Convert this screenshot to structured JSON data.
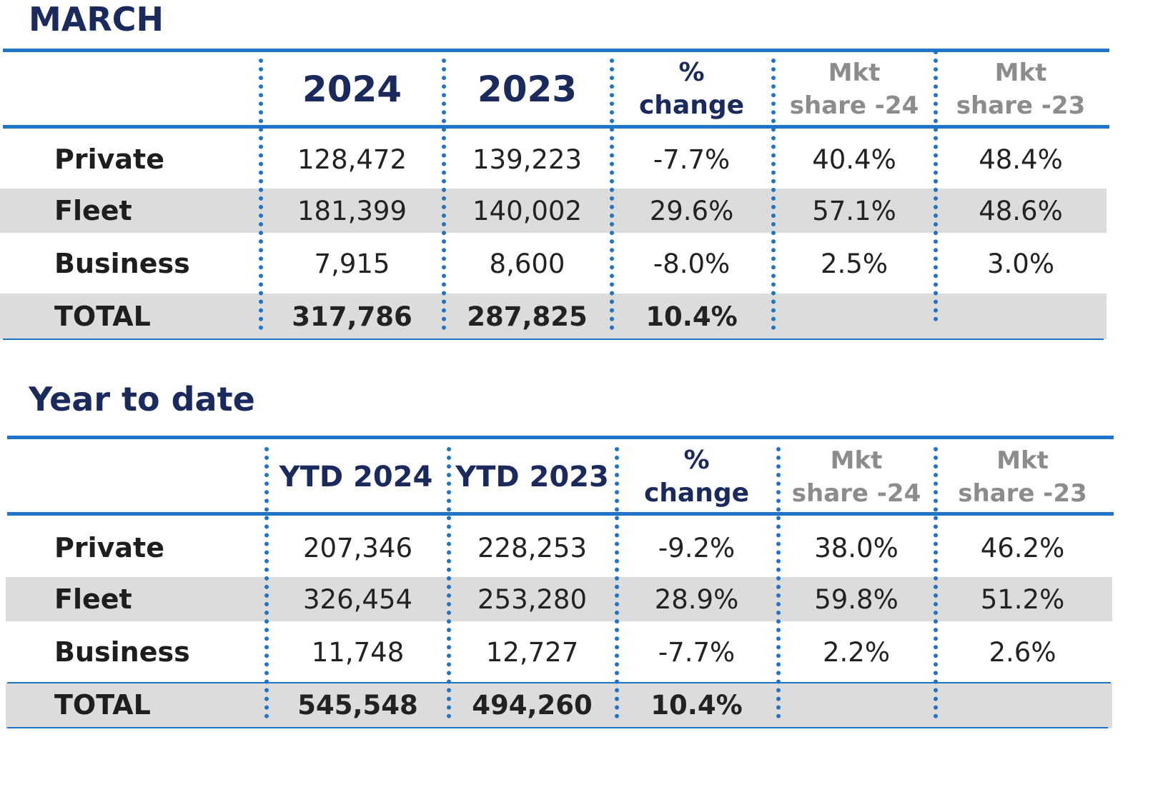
{
  "march": {
    "title": "MARCH",
    "columns": {
      "y1": "2024",
      "y2": "2023",
      "pct_line1": "%",
      "pct_line2": "change",
      "mkt1_line1": "Mkt",
      "mkt1_line2": "share -24",
      "mkt2_line1": "Mkt",
      "mkt2_line2": "share -23"
    },
    "rows": [
      {
        "label": "Private",
        "y1": "128,472",
        "y2": "139,223",
        "pct": "-7.7%",
        "mkt1": "40.4%",
        "mkt2": "48.4%"
      },
      {
        "label": "Fleet",
        "y1": "181,399",
        "y2": "140,002",
        "pct": "29.6%",
        "mkt1": "57.1%",
        "mkt2": "48.6%"
      },
      {
        "label": "Business",
        "y1": "7,915",
        "y2": "8,600",
        "pct": "-8.0%",
        "mkt1": "2.5%",
        "mkt2": "3.0%"
      }
    ],
    "total": {
      "label": "TOTAL",
      "y1": "317,786",
      "y2": "287,825",
      "pct": "10.4%"
    }
  },
  "ytd": {
    "title": "Year to date",
    "columns": {
      "y1": "YTD 2024",
      "y2": "YTD 2023",
      "pct_line1": "%",
      "pct_line2": "change",
      "mkt1_line1": "Mkt",
      "mkt1_line2": "share -24",
      "mkt2_line1": "Mkt",
      "mkt2_line2": "share -23"
    },
    "rows": [
      {
        "label": "Private",
        "y1": "207,346",
        "y2": "228,253",
        "pct": "-9.2%",
        "mkt1": "38.0%",
        "mkt2": "46.2%"
      },
      {
        "label": "Fleet",
        "y1": "326,454",
        "y2": "253,280",
        "pct": "28.9%",
        "mkt1": "59.8%",
        "mkt2": "51.2%"
      },
      {
        "label": "Business",
        "y1": "11,748",
        "y2": "12,727",
        "pct": "-7.7%",
        "mkt1": "2.2%",
        "mkt2": "2.6%"
      }
    ],
    "total": {
      "label": "TOTAL",
      "y1": "545,548",
      "y2": "494,260",
      "pct": "10.4%"
    }
  },
  "colors": {
    "title": "#1b2a5c",
    "rule": "#1f73c8",
    "band": "#dcdcdc",
    "muted_header": "#8c8c8c"
  }
}
